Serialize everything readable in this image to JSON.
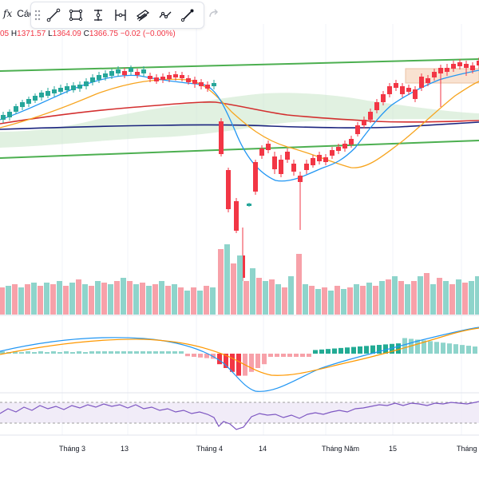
{
  "toolbar": {
    "fx_symbol": "fx",
    "cut_label": "Các",
    "tools": [
      "trend-line-icon",
      "rectangle-icon",
      "vertical-line-icon",
      "horizontal-ray-icon",
      "parallel-channel-icon",
      "path-icon",
      "brush-icon"
    ],
    "redo_icon": "redo-icon"
  },
  "legend": {
    "open_tail": "05",
    "h_label": "H",
    "h_value": "1371.57",
    "l_label": "L",
    "l_value": "1364.09",
    "c_label": "C",
    "c_value": "1366.75",
    "change": "−0.02 (−0.00%)"
  },
  "colors": {
    "up": "#26a69a",
    "down": "#f23645",
    "vol_up": "#8ed4cb",
    "vol_down": "#f7a1a9",
    "channel": "#4caf50",
    "ma_fast": "#2196f3",
    "ma_mid": "#f7a520",
    "ma_slow": "#d32f2f",
    "ma_long": "#1a237e",
    "rsi_line": "#7e57c2"
  },
  "x_axis": {
    "labels": [
      "Tháng 3",
      "13",
      "Tháng 4",
      "14",
      "Tháng Năm",
      "15",
      "Tháng"
    ]
  }
}
